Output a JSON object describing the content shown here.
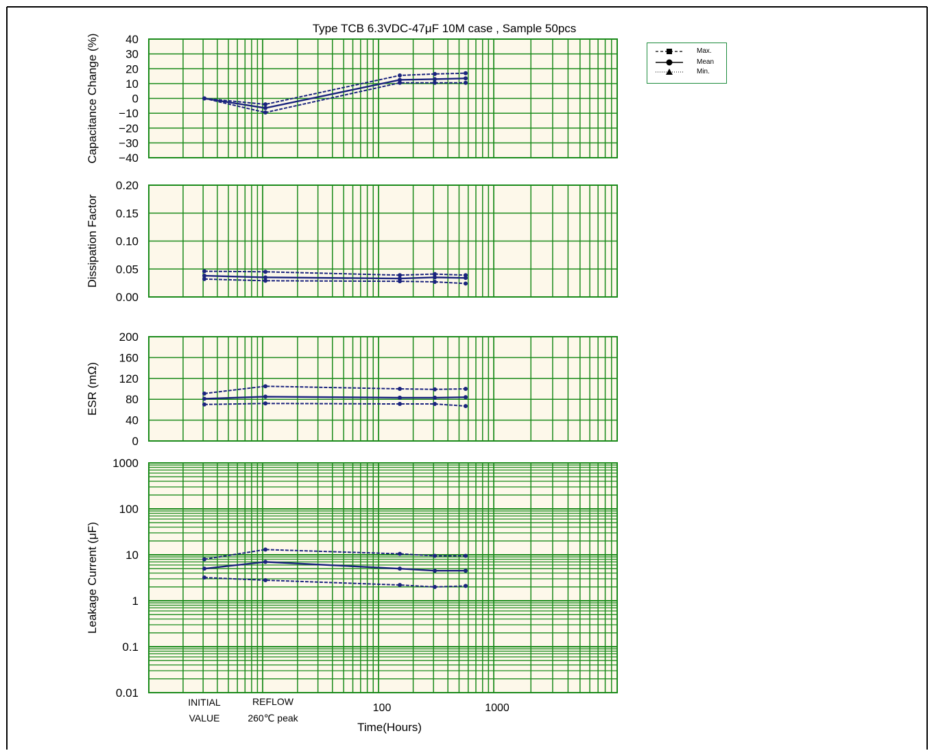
{
  "title": "Type TCB 6.3VDC-47μF 10M case ,  Sample 50pcs",
  "colors": {
    "grid": "#1a8a1a",
    "plot_bg": "#fdf8ea",
    "series": "#1a237e",
    "frame": "#000000"
  },
  "legend": {
    "max": "Max.",
    "mean": "Mean",
    "min": "Min."
  },
  "x_axis": {
    "label": "Time(Hours)",
    "tick_labels": [
      "INITIAL",
      "VALUE",
      "REFLOW",
      "260℃ peak",
      "100",
      "1000"
    ]
  },
  "chart_data": [
    {
      "type": "line",
      "ylabel": "Capacitance   Change (%)",
      "ylim": [
        -40,
        40
      ],
      "y_ticks": [
        "40",
        "30",
        "20",
        "10",
        "0",
        "−10",
        "−20",
        "−30",
        "−40"
      ],
      "x": [
        "INITIAL VALUE",
        "REFLOW 260℃ peak",
        "150",
        "300",
        "500"
      ],
      "series": [
        {
          "name": "Max.",
          "values": [
            0,
            -4,
            15.5,
            16.5,
            17
          ]
        },
        {
          "name": "Mean",
          "values": [
            0,
            -6.5,
            12.5,
            13,
            13.5
          ]
        },
        {
          "name": "Min.",
          "values": [
            0,
            -9.5,
            10.5,
            10.5,
            10.5
          ]
        }
      ]
    },
    {
      "type": "line",
      "ylabel": "Dissipation   Factor",
      "ylim": [
        0,
        0.2
      ],
      "y_ticks": [
        "0.20",
        "0.15",
        "0.10",
        "0.05",
        "0.00"
      ],
      "x": [
        "INITIAL VALUE",
        "REFLOW 260℃ peak",
        "150",
        "300",
        "500"
      ],
      "series": [
        {
          "name": "Max.",
          "values": [
            0.046,
            0.045,
            0.039,
            0.041,
            0.039
          ]
        },
        {
          "name": "Mean",
          "values": [
            0.038,
            0.035,
            0.033,
            0.035,
            0.034
          ]
        },
        {
          "name": "Min.",
          "values": [
            0.032,
            0.029,
            0.028,
            0.027,
            0.024
          ]
        }
      ]
    },
    {
      "type": "line",
      "ylabel": "ESR (mΩ)",
      "ylim": [
        0,
        200
      ],
      "y_ticks": [
        "200",
        "160",
        "120",
        "80",
        "40",
        "0"
      ],
      "x": [
        "INITIAL VALUE",
        "REFLOW 260℃ peak",
        "150",
        "300",
        "500"
      ],
      "series": [
        {
          "name": "Max.",
          "values": [
            91,
            105,
            100,
            99,
            100
          ]
        },
        {
          "name": "Mean",
          "values": [
            81,
            85,
            83,
            83,
            84
          ]
        },
        {
          "name": "Min.",
          "values": [
            70,
            72,
            71,
            71,
            67
          ]
        }
      ]
    },
    {
      "type": "line",
      "ylabel": "Leakage Current (μF)",
      "ylim": [
        0.01,
        1000
      ],
      "y_scale": "log",
      "y_ticks": [
        "1000",
        "100",
        "10",
        "1",
        "0.1",
        "0.01"
      ],
      "x": [
        "INITIAL VALUE",
        "REFLOW 260℃ peak",
        "150",
        "300",
        "500"
      ],
      "series": [
        {
          "name": "Max.",
          "values": [
            8,
            13,
            10.5,
            9.5,
            9.5
          ]
        },
        {
          "name": "Mean",
          "values": [
            5,
            7,
            5,
            4.5,
            4.5
          ]
        },
        {
          "name": "Min.",
          "values": [
            3.2,
            2.8,
            2.2,
            2,
            2.1
          ]
        }
      ]
    }
  ]
}
